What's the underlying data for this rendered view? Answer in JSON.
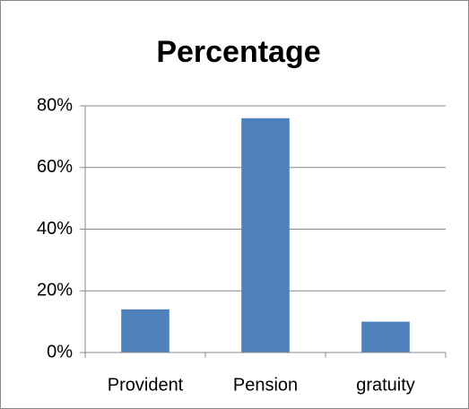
{
  "chart_data": {
    "type": "bar",
    "title": "Percentage",
    "categories": [
      "Provident",
      "Pension",
      "gratuity"
    ],
    "values": [
      14,
      76,
      10
    ],
    "color": "#4f81bd",
    "ylim": [
      0,
      80
    ],
    "yticks": [
      {
        "value": 0,
        "label": "0%"
      },
      {
        "value": 20,
        "label": "20%"
      },
      {
        "value": 40,
        "label": "40%"
      },
      {
        "value": 60,
        "label": "60%"
      },
      {
        "value": 80,
        "label": "80%"
      }
    ],
    "grid": true
  }
}
